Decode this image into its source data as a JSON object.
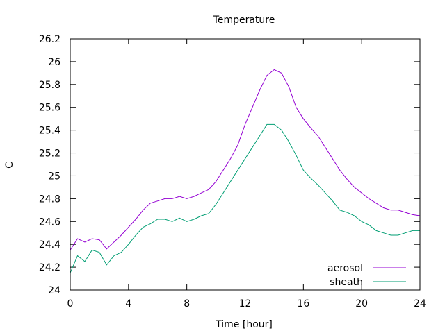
{
  "chart_data": {
    "type": "line",
    "title": "Temperature",
    "xlabel": "Time [hour]",
    "ylabel": "C",
    "xlim": [
      0,
      24
    ],
    "ylim": [
      24,
      26.2
    ],
    "xticks": [
      "0",
      "4",
      "8",
      "12",
      "16",
      "20",
      "24"
    ],
    "yticks": [
      "24",
      "24.2",
      "24.4",
      "24.6",
      "24.8",
      "25",
      "25.2",
      "25.4",
      "25.6",
      "25.8",
      "26",
      "26.2"
    ],
    "grid": false,
    "legend_position": "bottom-right",
    "series": [
      {
        "name": "aerosol",
        "color": "#9400d3",
        "x": [
          0,
          0.5,
          1,
          1.5,
          2,
          2.5,
          3,
          3.5,
          4,
          4.5,
          5,
          5.5,
          6,
          6.5,
          7,
          7.5,
          8,
          8.5,
          9,
          9.5,
          10,
          10.5,
          11,
          11.5,
          12,
          12.5,
          13,
          13.5,
          14,
          14.5,
          15,
          15.5,
          16,
          16.5,
          17,
          17.5,
          18,
          18.5,
          19,
          19.5,
          20,
          20.5,
          21,
          21.5,
          22,
          22.5,
          23,
          23.5,
          24
        ],
        "y": [
          24.35,
          24.45,
          24.42,
          24.45,
          24.44,
          24.36,
          24.42,
          24.48,
          24.55,
          24.62,
          24.7,
          24.76,
          24.78,
          24.8,
          24.8,
          24.82,
          24.8,
          24.82,
          24.85,
          24.88,
          24.95,
          25.05,
          25.15,
          25.27,
          25.45,
          25.6,
          25.75,
          25.88,
          25.93,
          25.9,
          25.78,
          25.6,
          25.5,
          25.42,
          25.35,
          25.25,
          25.15,
          25.05,
          24.97,
          24.9,
          24.85,
          24.8,
          24.76,
          24.72,
          24.7,
          24.7,
          24.68,
          24.66,
          24.65
        ]
      },
      {
        "name": "sheath",
        "color": "#009e73",
        "x": [
          0,
          0.5,
          1,
          1.5,
          2,
          2.5,
          3,
          3.5,
          4,
          4.5,
          5,
          5.5,
          6,
          6.5,
          7,
          7.5,
          8,
          8.5,
          9,
          9.5,
          10,
          10.5,
          11,
          11.5,
          12,
          12.5,
          13,
          13.5,
          14,
          14.5,
          15,
          15.5,
          16,
          16.5,
          17,
          17.5,
          18,
          18.5,
          19,
          19.5,
          20,
          20.5,
          21,
          21.5,
          22,
          22.5,
          23,
          23.5,
          24
        ],
        "y": [
          24.15,
          24.3,
          24.25,
          24.35,
          24.33,
          24.22,
          24.3,
          24.33,
          24.4,
          24.48,
          24.55,
          24.58,
          24.62,
          24.62,
          24.6,
          24.63,
          24.6,
          24.62,
          24.65,
          24.67,
          24.75,
          24.85,
          24.95,
          25.05,
          25.15,
          25.25,
          25.35,
          25.45,
          25.45,
          25.4,
          25.3,
          25.18,
          25.05,
          24.98,
          24.92,
          24.85,
          24.78,
          24.7,
          24.68,
          24.65,
          24.6,
          24.57,
          24.52,
          24.5,
          24.48,
          24.48,
          24.5,
          24.52,
          24.52
        ]
      }
    ]
  }
}
